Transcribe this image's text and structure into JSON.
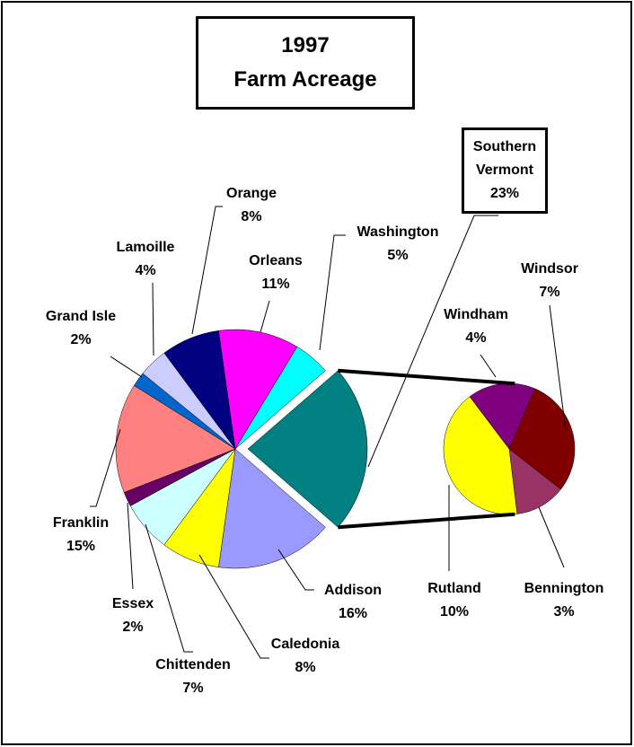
{
  "chart_data": [
    {
      "type": "pie",
      "title": [
        "1997",
        "Farm Acreage"
      ],
      "categories": [
        "Southern Vermont",
        "Addison",
        "Caledonia",
        "Chittenden",
        "Essex",
        "Franklin",
        "Grand Isle",
        "Lamoille",
        "Orange",
        "Orleans",
        "Washington"
      ],
      "values": [
        23,
        16,
        8,
        7,
        2,
        15,
        2,
        4,
        8,
        11,
        5
      ],
      "value_labels": [
        "23%",
        "16%",
        "8%",
        "7%",
        "2%",
        "15%",
        "2%",
        "4%",
        "8%",
        "11%",
        "5%"
      ],
      "colors": [
        "#008080",
        "#9999ff",
        "#ffff00",
        "#ccffff",
        "#660066",
        "#ff8080",
        "#0066cc",
        "#ccccff",
        "#000080",
        "#ff00ff",
        "#00ffff"
      ]
    },
    {
      "type": "pie",
      "categories": [
        "Windsor",
        "Bennington",
        "Rutland",
        "Windham"
      ],
      "values": [
        7,
        3,
        10,
        4
      ],
      "value_labels": [
        "7%",
        "3%",
        "10%",
        "4%"
      ],
      "colors": [
        "#800000",
        "#993366",
        "#ffff00",
        "#800080"
      ]
    }
  ]
}
